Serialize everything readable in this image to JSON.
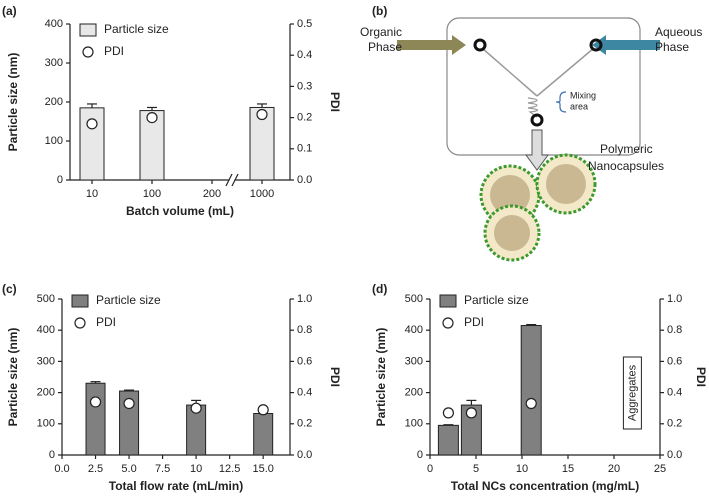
{
  "chart_data": [
    {
      "type": "bar",
      "panel_label": "(a)",
      "xlabel": "Batch volume (mL)",
      "ylabel": "Particle size (nm)",
      "y2label": "PDI",
      "categories": [
        "10",
        "100",
        "200",
        "1000"
      ],
      "axis_break": true,
      "ylim": [
        0,
        400
      ],
      "yticks": [
        0,
        100,
        200,
        300,
        400
      ],
      "y2lim": [
        0,
        0.5
      ],
      "y2ticks": [
        {
          "value": 0,
          "label": "0.0"
        },
        0.1,
        0.2,
        0.3,
        0.4,
        0.5
      ],
      "series": [
        {
          "name": "Particle size",
          "color": "#e8e8e8",
          "values": [
            185,
            178,
            null,
            186
          ],
          "errors": [
            10,
            8,
            null,
            9
          ]
        },
        {
          "name": "PDI",
          "axis": "y2",
          "color": "#ffffff",
          "values": [
            0.18,
            0.2,
            null,
            0.21
          ]
        }
      ]
    },
    {
      "type": "bar",
      "panel_label": "(c)",
      "xlabel": "Total flow rate (mL/min)",
      "ylabel": "Particle size (nm)",
      "y2label": "PDI",
      "x": [
        2.5,
        5,
        10,
        15
      ],
      "xlim": [
        0,
        17
      ],
      "xticks": [
        {
          "value": 0,
          "label": "0.0"
        },
        2.5,
        {
          "value": 5,
          "label": "5.0"
        },
        7.5,
        10,
        12.5,
        {
          "value": 15,
          "label": "15.0"
        }
      ],
      "ylim": [
        0,
        500
      ],
      "yticks": [
        0,
        100,
        200,
        300,
        400,
        500
      ],
      "y2lim": [
        0,
        1
      ],
      "y2ticks": [
        {
          "value": 0,
          "label": "0.0"
        },
        0.2,
        0.4,
        0.6,
        0.8,
        {
          "value": 1,
          "label": "1.0"
        }
      ],
      "series": [
        {
          "name": "Particle size",
          "color": "#808080",
          "values": [
            230,
            205,
            160,
            133
          ],
          "errors": [
            5,
            3,
            15,
            12
          ]
        },
        {
          "name": "PDI",
          "axis": "y2",
          "color": "#ffffff",
          "values": [
            0.34,
            0.33,
            0.3,
            0.29
          ],
          "errors": [
            null,
            null,
            null,
            0.02
          ]
        }
      ]
    },
    {
      "type": "bar",
      "panel_label": "(d)",
      "xlabel": "Total NCs concentration (mg/mL)",
      "ylabel": "Particle size (nm)",
      "y2label": "PDI",
      "x": [
        2,
        4.5,
        11
      ],
      "annotation": "Aggregates",
      "annotation_x": 22,
      "xlim": [
        0,
        25
      ],
      "xticks": [
        0,
        5,
        10,
        15,
        20,
        25
      ],
      "ylim": [
        0,
        500
      ],
      "yticks": [
        0,
        100,
        200,
        300,
        400,
        500
      ],
      "y2lim": [
        0,
        1
      ],
      "y2ticks": [
        {
          "value": 0,
          "label": "0.0"
        },
        0.2,
        0.4,
        0.6,
        0.8,
        {
          "value": 1,
          "label": "1.0"
        }
      ],
      "series": [
        {
          "name": "Particle size",
          "color": "#808080",
          "values": [
            95,
            160,
            415
          ],
          "errors": [
            2,
            15,
            3
          ]
        },
        {
          "name": "PDI",
          "axis": "y2",
          "color": "#ffffff",
          "values": [
            0.27,
            0.27,
            0.33
          ]
        }
      ]
    }
  ],
  "diagram": {
    "label": "(b)",
    "organic": [
      "Organic",
      "Phase"
    ],
    "aqueous": [
      "Aqueous",
      "Phase"
    ],
    "mixing": [
      "Mixing",
      "area"
    ],
    "product": [
      "Polymeric",
      "Nanocapsules"
    ]
  }
}
